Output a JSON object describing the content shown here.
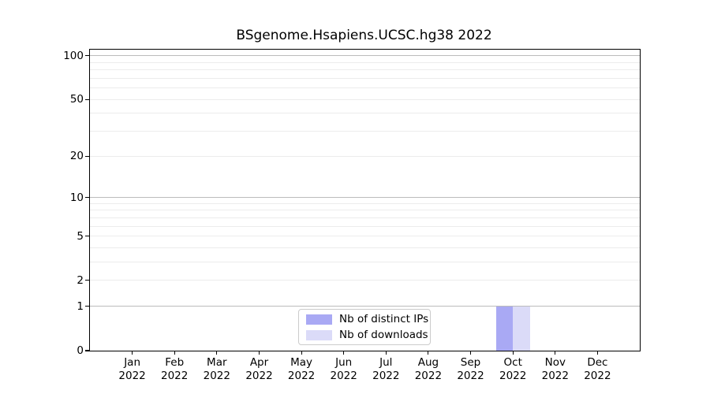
{
  "figure": {
    "background": "#ffffff"
  },
  "chart_data": {
    "type": "bar",
    "title": "BSgenome.Hsapiens.UCSC.hg38 2022",
    "categories": [
      "Jan",
      "Feb",
      "Mar",
      "Apr",
      "May",
      "Jun",
      "Jul",
      "Aug",
      "Sep",
      "Oct",
      "Nov",
      "Dec"
    ],
    "category_year_line": "2022",
    "series": [
      {
        "name": "Nb of distinct IPs",
        "color": "#a9a9f4",
        "values": [
          0,
          0,
          0,
          0,
          0,
          0,
          0,
          0,
          0,
          1,
          0,
          0
        ]
      },
      {
        "name": "Nb of downloads",
        "color": "#dbdbf8",
        "values": [
          0,
          0,
          0,
          0,
          0,
          0,
          0,
          0,
          0,
          1,
          0,
          0
        ]
      }
    ],
    "xlabel": "",
    "ylabel": "",
    "y_scale": "log1p",
    "ylim": [
      0,
      110
    ],
    "y_tick_labels": [
      0,
      1,
      2,
      5,
      10,
      20,
      50,
      100
    ],
    "y_major_gridlines": [
      1,
      10,
      100
    ],
    "y_minor_gridlines": [
      2,
      3,
      4,
      5,
      6,
      7,
      8,
      9,
      20,
      30,
      40,
      50,
      60,
      70,
      80,
      90
    ],
    "grid": true,
    "legend": {
      "position": "bottom-center",
      "entries": [
        "Nb of distinct IPs",
        "Nb of downloads"
      ]
    },
    "colors": {
      "major_grid": "#bcbcbc",
      "minor_grid": "#ececec",
      "axis": "#000000",
      "text": "#000000",
      "legend_border": "#cbcbcb"
    }
  }
}
